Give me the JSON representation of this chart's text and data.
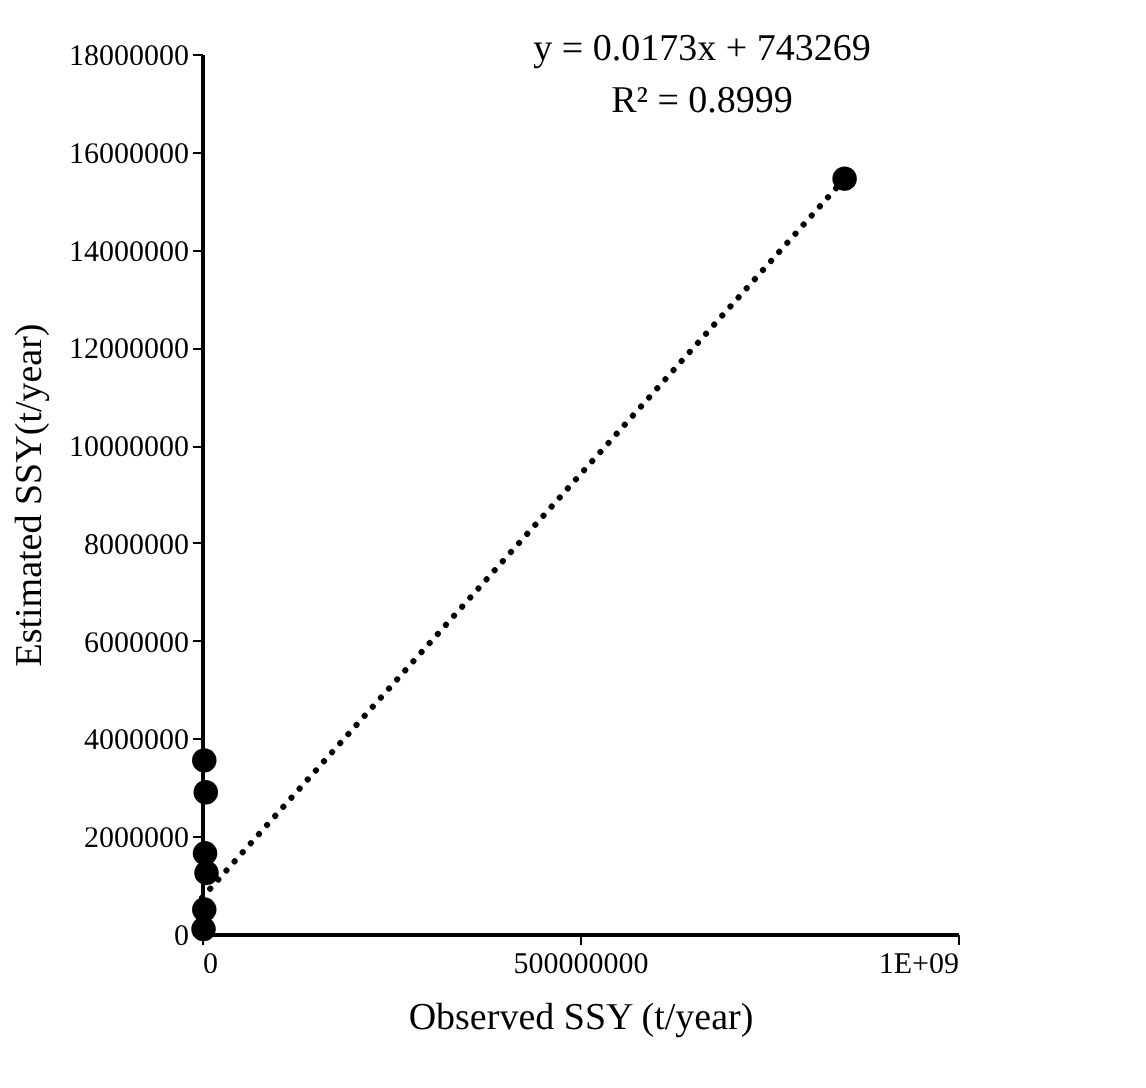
{
  "chart_data": {
    "type": "scatter",
    "xlabel": "Observed SSY (t/year)",
    "ylabel": "Estimated SSY(t/year)",
    "series": [
      {
        "color": "#000000",
        "x": [
          3000000,
          5000000,
          4000000,
          6000000,
          3000000,
          2000000,
          850000000
        ],
        "values": [
          3550000,
          2900000,
          1650000,
          1250000,
          500000,
          100000,
          15450000
        ]
      },
      {
        "type": "line",
        "color": "#000000",
        "line_style": "dotted",
        "marker": "none",
        "x": [
          0,
          850000000
        ],
        "values": [
          740000,
          15450000
        ]
      }
    ],
    "annotations": [
      "y = 0.0173x + 743269",
      "R² = 0.8999"
    ],
    "xlim": [
      0,
      1000000000
    ],
    "xticks": [
      0,
      500000000,
      {
        "value": 1000000000,
        "label": "1E+09"
      }
    ],
    "ylim": [
      0,
      18000000
    ],
    "yticks": [
      0,
      2000000,
      4000000,
      6000000,
      8000000,
      10000000,
      12000000,
      14000000,
      16000000,
      18000000
    ],
    "grid": false,
    "marker": "circle"
  }
}
